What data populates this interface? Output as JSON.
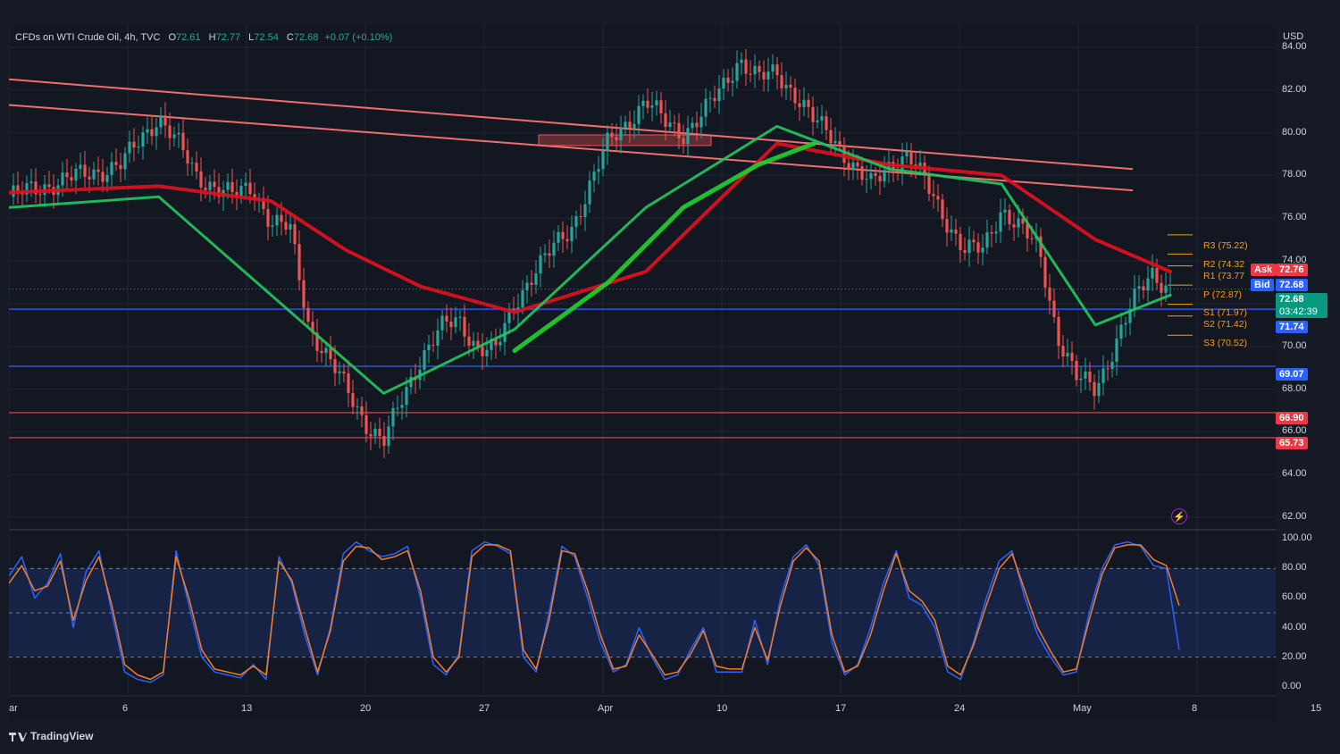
{
  "header": {
    "symbol": "CFDs on WTI Crude Oil, 4h, TVC",
    "o_label": "O",
    "o": "72.61",
    "h_label": "H",
    "h": "72.77",
    "l_label": "L",
    "l": "72.54",
    "c_label": "C",
    "c": "72.68",
    "change": "+0.07 (+0.10%)"
  },
  "currency": "USD",
  "footer": {
    "brand": "TradingView"
  },
  "colors": {
    "up": "#26a69a",
    "down": "#ef5350",
    "accent_red": "#f23645",
    "accent_blue": "#2962ff",
    "pivot": "#f59c1a",
    "green_ma": "#21c55d"
  },
  "price_labels": {
    "ask_label": "Ask",
    "ask": "72.76",
    "bid_label": "Bid",
    "bid": "72.68",
    "last": "72.68",
    "countdown": "03:42:39",
    "blue_upper": "71.74",
    "blue_lower": "69.07",
    "red_upper": "66.90",
    "red_lower": "65.73"
  },
  "pivots": {
    "r3": "R3 (75.22)",
    "r2": "R2 (74.32",
    "r1": "R1 (73.77",
    "p": "P (72.87)",
    "s1": "S1 (71.97)",
    "s2": "S2 (71.42)",
    "s3": "S3 (70.52)"
  },
  "chart_data": [
    {
      "type": "candlestick",
      "title": "CFDs on WTI Crude Oil, 4h, TVC",
      "y_axis": {
        "ticks": [
          "84.00",
          "82.00",
          "80.00",
          "78.00",
          "76.00",
          "74.00",
          "72.00",
          "70.00",
          "68.00",
          "66.00",
          "64.00",
          "62.00"
        ],
        "ylim": [
          61.5,
          85.0
        ]
      },
      "x_axis": {
        "ticks": [
          "ar",
          "6",
          "13",
          "20",
          "27",
          "Apr",
          "10",
          "17",
          "24",
          "May",
          "8",
          "15"
        ]
      },
      "series_trace": {
        "close_path": [
          [
            0,
            77.0
          ],
          [
            3,
            77.8
          ],
          [
            6,
            78.5
          ],
          [
            8,
            80.8
          ],
          [
            9,
            79.5
          ],
          [
            10,
            78.0
          ],
          [
            12,
            77.0
          ],
          [
            13,
            77.5
          ],
          [
            14,
            75.8
          ],
          [
            15,
            75.5
          ],
          [
            16,
            71.0
          ],
          [
            17,
            69.5
          ],
          [
            18,
            68.0
          ],
          [
            19,
            66.5
          ],
          [
            20,
            65.5
          ],
          [
            21,
            67.5
          ],
          [
            22,
            69.5
          ],
          [
            23,
            70.8
          ],
          [
            24,
            71.2
          ],
          [
            25,
            70.0
          ],
          [
            26,
            69.8
          ],
          [
            27,
            72.0
          ],
          [
            28,
            73.5
          ],
          [
            29,
            74.5
          ],
          [
            30,
            75.5
          ],
          [
            31,
            77.5
          ],
          [
            32,
            79.5
          ],
          [
            33,
            80.5
          ],
          [
            34,
            81.5
          ],
          [
            35,
            80.5
          ],
          [
            36,
            80.0
          ],
          [
            37,
            80.8
          ],
          [
            38,
            82.0
          ],
          [
            39,
            83.5
          ],
          [
            40,
            82.5
          ],
          [
            41,
            82.8
          ],
          [
            42,
            81.8
          ],
          [
            43,
            80.5
          ],
          [
            44,
            79.8
          ],
          [
            45,
            78.5
          ],
          [
            46,
            77.5
          ],
          [
            47,
            78.5
          ],
          [
            48,
            79.0
          ],
          [
            49,
            77.5
          ],
          [
            50,
            76.0
          ],
          [
            51,
            74.5
          ],
          [
            52,
            74.5
          ],
          [
            53,
            76.5
          ],
          [
            54,
            75.5
          ],
          [
            55,
            74.5
          ],
          [
            56,
            70.5
          ],
          [
            57,
            68.5
          ],
          [
            58,
            68.0
          ],
          [
            59,
            70.0
          ],
          [
            60,
            72.0
          ],
          [
            61,
            73.5
          ],
          [
            62,
            72.7
          ]
        ]
      },
      "moving_averages": [
        {
          "color": "red",
          "points": [
            [
              0,
              77.2
            ],
            [
              8,
              77.5
            ],
            [
              14,
              76.8
            ],
            [
              18,
              74.5
            ],
            [
              22,
              72.8
            ],
            [
              27,
              71.6
            ],
            [
              34,
              73.5
            ],
            [
              41,
              79.5
            ],
            [
              47,
              78.5
            ],
            [
              53,
              78.0
            ],
            [
              58,
              75.0
            ],
            [
              62,
              73.5
            ]
          ]
        },
        {
          "color": "green",
          "points": [
            [
              0,
              76.5
            ],
            [
              8,
              77.0
            ],
            [
              20,
              67.8
            ],
            [
              27,
              70.8
            ],
            [
              34,
              76.5
            ],
            [
              41,
              80.3
            ],
            [
              47,
              78.3
            ],
            [
              53,
              77.6
            ],
            [
              58,
              71.0
            ],
            [
              62,
              72.4
            ]
          ]
        },
        {
          "color": "thick-green",
          "points": [
            [
              27,
              69.8
            ],
            [
              32,
              73.0
            ],
            [
              36,
              76.5
            ],
            [
              40,
              78.5
            ],
            [
              43,
              79.5
            ]
          ]
        }
      ],
      "trend_lines": [
        {
          "points": [
            [
              0,
              82.5
            ],
            [
              60,
              78.3
            ]
          ]
        },
        {
          "points": [
            [
              0,
              81.3
            ],
            [
              60,
              77.3
            ]
          ]
        }
      ],
      "horizontal_levels": [
        71.74,
        69.07,
        66.9,
        65.73
      ],
      "pivot_levels": {
        "R3": 75.22,
        "R2": 74.32,
        "R1": 73.77,
        "P": 72.87,
        "S1": 71.97,
        "S2": 71.42,
        "S3": 70.52
      },
      "last_price": 72.68
    },
    {
      "type": "line",
      "title": "",
      "y_axis": {
        "ticks": [
          "100.00",
          "80.00",
          "60.00",
          "40.00",
          "20.00",
          "0.00"
        ],
        "ylim": [
          -5,
          105
        ]
      },
      "band": [
        20,
        80
      ],
      "middle_line": 50,
      "series": [
        {
          "color": "blue",
          "values": [
            75,
            88,
            60,
            70,
            90,
            40,
            78,
            92,
            50,
            10,
            5,
            3,
            8,
            92,
            55,
            20,
            10,
            8,
            6,
            15,
            5,
            88,
            70,
            35,
            8,
            40,
            90,
            98,
            92,
            88,
            90,
            95,
            60,
            15,
            8,
            22,
            92,
            98,
            95,
            90,
            20,
            10,
            50,
            95,
            88,
            60,
            30,
            10,
            15,
            40,
            20,
            5,
            8,
            25,
            40,
            10,
            10,
            10,
            45,
            15,
            60,
            88,
            96,
            82,
            30,
            8,
            15,
            40,
            70,
            92,
            60,
            55,
            40,
            10,
            5,
            30,
            60,
            85,
            92,
            60,
            35,
            20,
            8,
            10,
            50,
            80,
            96,
            98,
            95,
            82,
            80,
            25
          ]
        },
        {
          "color": "orange",
          "values": [
            70,
            82,
            65,
            68,
            85,
            45,
            72,
            88,
            55,
            15,
            8,
            5,
            10,
            88,
            60,
            25,
            12,
            10,
            8,
            14,
            8,
            85,
            72,
            40,
            10,
            38,
            85,
            95,
            94,
            86,
            88,
            92,
            65,
            20,
            10,
            20,
            88,
            96,
            96,
            92,
            25,
            12,
            45,
            92,
            90,
            65,
            35,
            12,
            14,
            35,
            22,
            8,
            10,
            22,
            38,
            14,
            12,
            12,
            40,
            18,
            55,
            85,
            94,
            85,
            35,
            10,
            14,
            35,
            65,
            90,
            65,
            58,
            45,
            14,
            8,
            28,
            55,
            80,
            90,
            65,
            40,
            24,
            10,
            12,
            45,
            76,
            94,
            96,
            96,
            86,
            82,
            55
          ]
        }
      ]
    }
  ]
}
